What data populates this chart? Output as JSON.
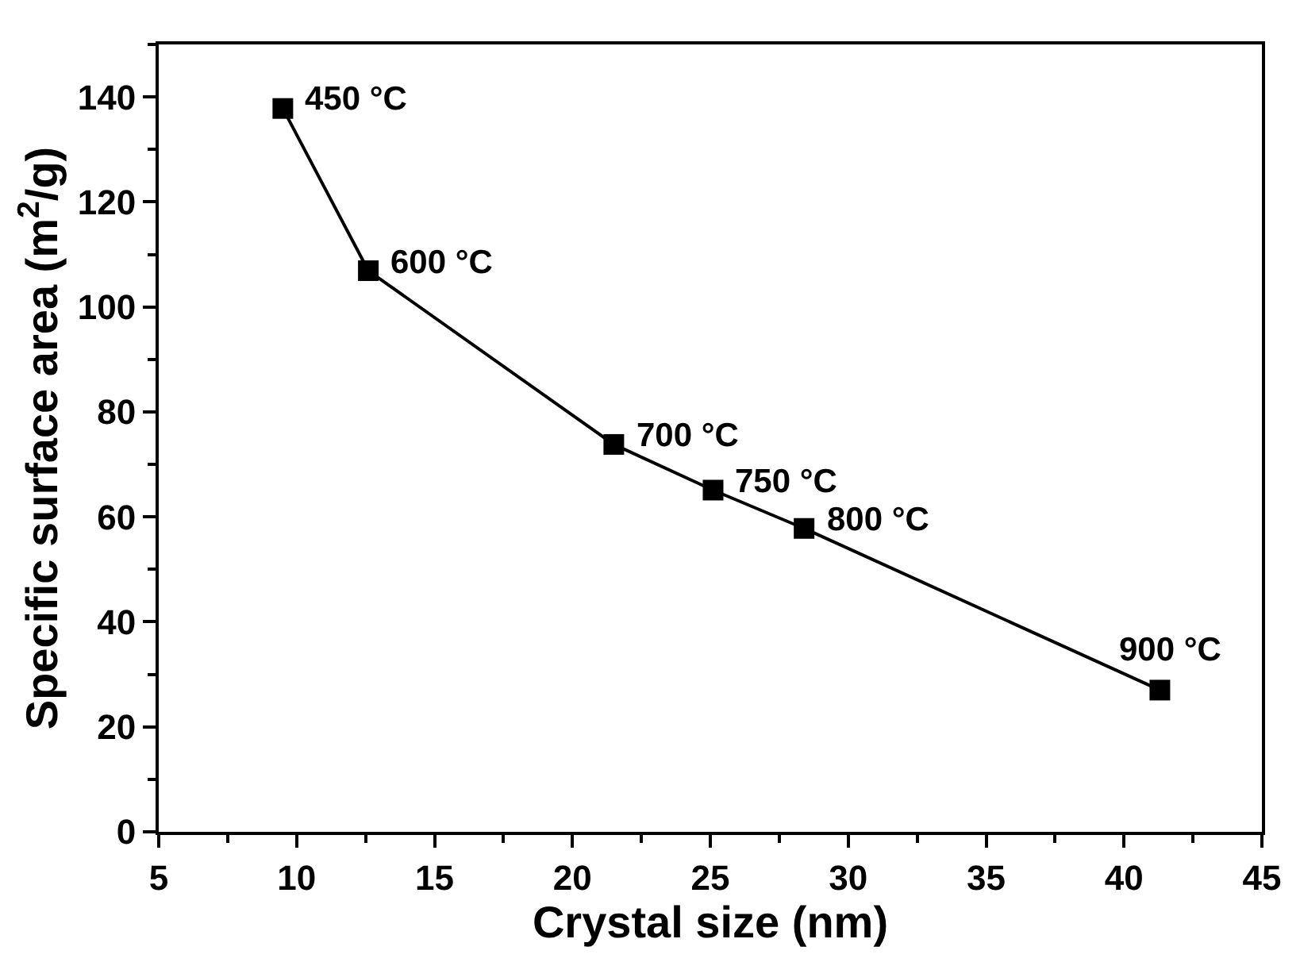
{
  "chart_data": {
    "type": "line",
    "xlabel": "Crystal size (nm)",
    "ylabel": "Specific surface area (m$^{2}$/g)",
    "x": [
      9.5,
      12.6,
      21.5,
      25.1,
      28.4,
      41.3
    ],
    "series": [
      {
        "color": "#000000",
        "values": [
          137.8,
          106.9,
          73.8,
          65.1,
          57.8,
          27.0
        ]
      }
    ],
    "annotations": [
      {
        "text": "450 °C",
        "x": 9.5,
        "y": 137.8
      },
      {
        "text": "600 °C",
        "x": 12.6,
        "y": 106.9
      },
      {
        "text": "700 °C",
        "x": 21.5,
        "y": 73.8
      },
      {
        "text": "750 °C",
        "x": 25.1,
        "y": 65.1
      },
      {
        "text": "800 °C",
        "x": 28.4,
        "y": 57.8
      },
      {
        "text": "900 °C",
        "x": 41.3,
        "y": 27.0
      }
    ],
    "xlim": [
      5,
      45
    ],
    "xticks": [
      5,
      10,
      15,
      20,
      25,
      30,
      35,
      40,
      45
    ],
    "ylim": [
      0,
      150
    ],
    "yticks": [
      0,
      20,
      40,
      60,
      80,
      100,
      120,
      140
    ],
    "marker": "square",
    "line_style": "solid"
  }
}
